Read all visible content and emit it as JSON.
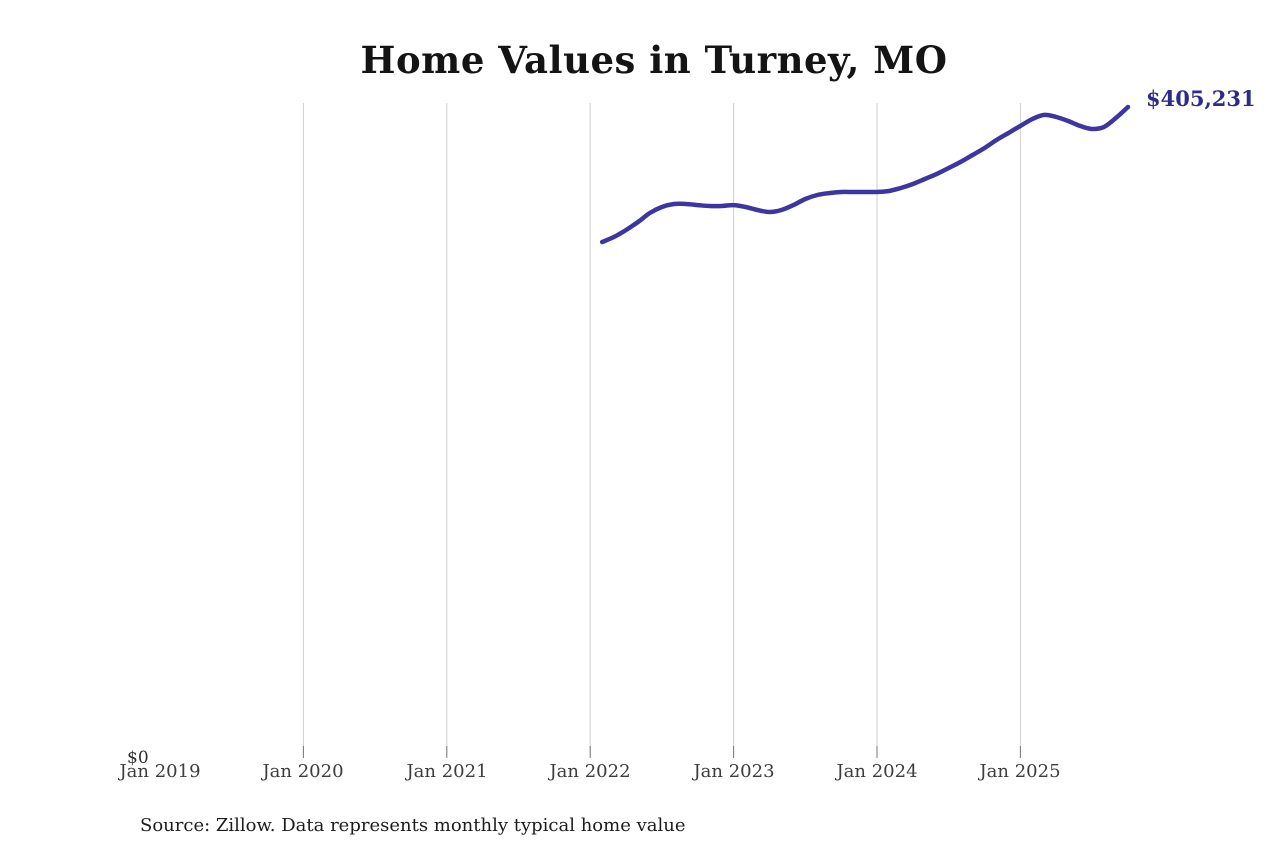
{
  "page": {
    "background_color": "#ffffff"
  },
  "chart": {
    "title": "Home Values in Turney, MO",
    "source_note": "Source: Zillow. Data represents monthly typical home value",
    "end_value_label": "$405,231",
    "y_zero_label": "$0",
    "colors": {
      "line": "#3d35a0",
      "end_label": "#2e2a88",
      "gridline": "#cfcfcf",
      "tick": "#777777",
      "axis_label": "#3d3d3d",
      "title": "#141414",
      "source": "#1c1c1c"
    }
  },
  "chart_data": {
    "type": "line",
    "title": "Home Values in Turney, MO",
    "xlabel": "",
    "ylabel": "",
    "ylim": [
      0,
      408000
    ],
    "grid": "vertical-yearly",
    "legend": "none",
    "x_tick_labels": [
      "Jan 2019",
      "Jan 2020",
      "Jan 2021",
      "Jan 2022",
      "Jan 2023",
      "Jan 2024",
      "Jan 2025"
    ],
    "x": [
      "2022-01",
      "2022-02",
      "2022-03",
      "2022-04",
      "2022-05",
      "2022-06",
      "2022-07",
      "2022-08",
      "2022-09",
      "2022-10",
      "2022-11",
      "2022-12",
      "2023-01",
      "2023-02",
      "2023-03",
      "2023-04",
      "2023-05",
      "2023-06",
      "2023-07",
      "2023-08",
      "2023-09",
      "2023-10",
      "2023-11",
      "2023-12",
      "2024-01",
      "2024-02",
      "2024-03",
      "2024-04",
      "2024-05",
      "2024-06",
      "2024-07",
      "2024-08",
      "2024-09",
      "2024-10",
      "2024-11",
      "2024-12",
      "2025-01",
      "2025-02",
      "2025-03",
      "2025-04",
      "2025-05",
      "2025-06",
      "2025-07",
      "2025-08",
      "2025-09"
    ],
    "series": [
      {
        "name": "Typical home value (USD)",
        "values": [
          320800,
          324000,
          328300,
          333300,
          339000,
          342700,
          344600,
          344600,
          343900,
          343300,
          343300,
          343900,
          342700,
          340800,
          339600,
          340800,
          343900,
          347700,
          350200,
          351400,
          352100,
          352100,
          352100,
          352100,
          352700,
          354600,
          357100,
          360200,
          363400,
          367100,
          370900,
          375200,
          379600,
          384600,
          389000,
          393400,
          397700,
          400300,
          399000,
          396500,
          393400,
          391500,
          392800,
          398400,
          405231
        ]
      }
    ],
    "final_value": 405231,
    "final_value_label": "$405,231",
    "annotations": [
      "$0 baseline label at bottom-left",
      "end-of-line value label at top-right"
    ]
  }
}
